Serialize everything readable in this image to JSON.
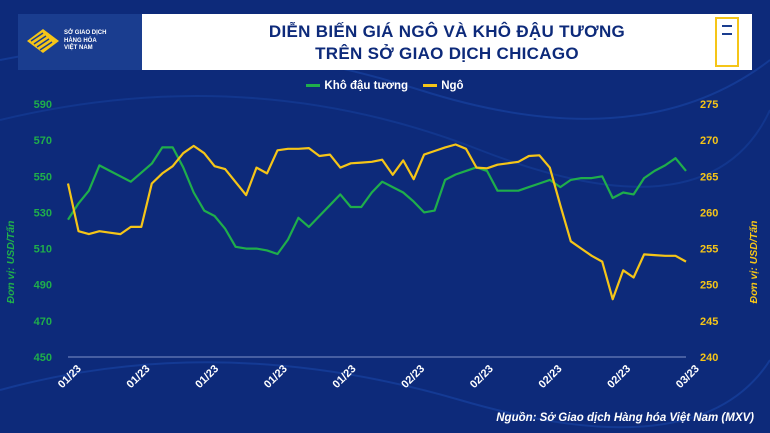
{
  "header": {
    "logo_text_lines": [
      "SỞ GIAO DỊCH",
      "HÀNG HÓA",
      "VIỆT NAM"
    ],
    "title_line1": "DIỄN BIẾN GIÁ NGÔ VÀ  KHÔ ĐẬU TƯƠNG",
    "title_line2": "TRÊN SỞ GIAO DỊCH CHICAGO"
  },
  "source": "Nguồn: Sở Giao dịch Hàng hóa Việt Nam (MXV)",
  "colors": {
    "soybean_meal": "#1fae4b",
    "corn": "#f5c518",
    "background": "#0d2a7a"
  },
  "chart_data": {
    "type": "line",
    "title": "DIỄN BIẾN GIÁ NGÔ VÀ  KHÔ ĐẬU TƯƠNG TRÊN SỞ GIAO DỊCH CHICAGO",
    "legend": [
      "Khô đậu tương",
      "Ngô"
    ],
    "legend_position": "top-center",
    "left_axis": {
      "label": "Đơn vị: USD/Tấn",
      "range": [
        450,
        590
      ],
      "ticks": [
        450,
        470,
        490,
        510,
        530,
        550,
        570,
        590
      ]
    },
    "right_axis": {
      "label": "Đơn vị: USD/Tấn",
      "range": [
        240,
        275
      ],
      "ticks": [
        240,
        245,
        250,
        255,
        260,
        265,
        270,
        275
      ]
    },
    "x_tick_labels": [
      "01/23",
      "01/23",
      "01/23",
      "01/23",
      "01/23",
      "02/23",
      "02/23",
      "02/23",
      "02/23",
      "03/23"
    ],
    "series": [
      {
        "name": "Khô đậu tương",
        "axis": "left",
        "values": [
          526,
          535,
          542,
          556,
          553,
          550,
          547,
          552,
          557,
          566,
          566,
          555,
          541,
          531,
          528,
          521,
          511,
          510,
          510,
          509,
          507,
          515,
          527,
          522,
          528,
          534,
          540,
          533,
          533,
          541,
          547,
          544,
          541,
          536,
          530,
          531,
          548,
          551,
          553,
          555,
          553,
          542,
          542,
          542,
          544,
          546,
          548,
          544,
          548,
          549,
          549,
          550,
          538,
          541,
          540,
          549,
          553,
          556,
          560,
          553
        ]
      },
      {
        "name": "Ngô",
        "axis": "right",
        "values": [
          264,
          257.4,
          257,
          257.4,
          257.2,
          257,
          258,
          258,
          264,
          265.4,
          266.4,
          268.2,
          269.2,
          268.2,
          266.4,
          266,
          264.2,
          262.4,
          266.2,
          265.4,
          268.6,
          268.8,
          268.8,
          268.9,
          267.8,
          268,
          266.2,
          266.8,
          266.9,
          267,
          267.3,
          265.2,
          267.2,
          264.6,
          268,
          268.5,
          269,
          269.4,
          268.8,
          266.2,
          266.1,
          266.6,
          266.8,
          267,
          267.8,
          267.9,
          266.2,
          261,
          256,
          255,
          254,
          253.2,
          248,
          252,
          251,
          254.2,
          254.1,
          254,
          254,
          253.2
        ]
      }
    ]
  }
}
